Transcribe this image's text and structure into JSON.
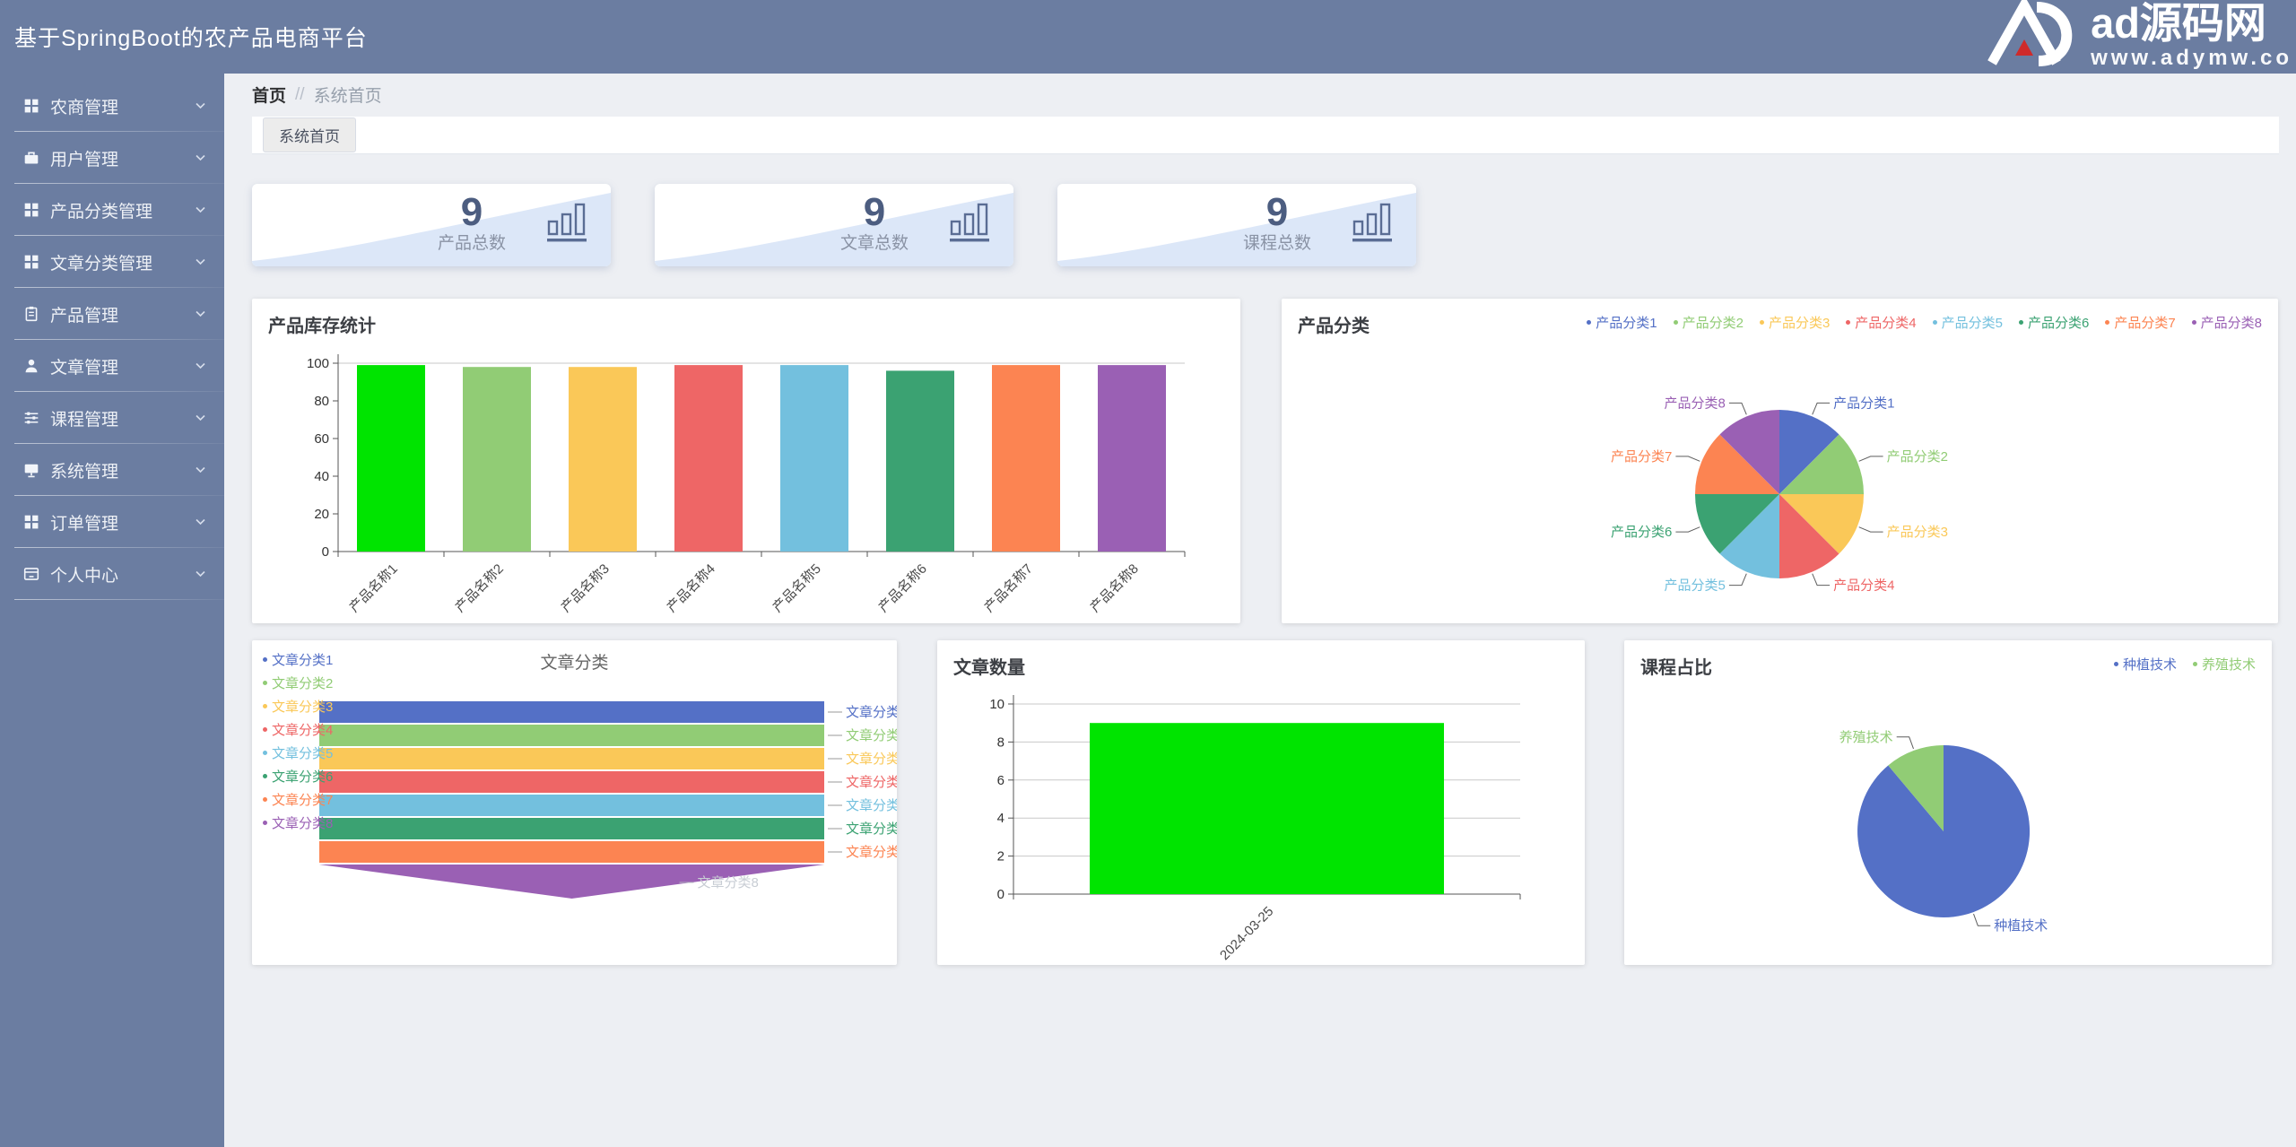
{
  "header": {
    "title": "基于SpringBoot的农产品电商平台",
    "watermark": {
      "logo_text": "ad源码网",
      "url": "www.adymw.co",
      "logo_icon": "ad-logo-icon"
    }
  },
  "sidebar": {
    "items": [
      {
        "icon": "grid-icon",
        "label": "农商管理"
      },
      {
        "icon": "briefcase-icon",
        "label": "用户管理"
      },
      {
        "icon": "grid-icon",
        "label": "产品分类管理"
      },
      {
        "icon": "grid-icon",
        "label": "文章分类管理"
      },
      {
        "icon": "clipboard-icon",
        "label": "产品管理"
      },
      {
        "icon": "user-icon",
        "label": "文章管理"
      },
      {
        "icon": "sliders-icon",
        "label": "课程管理"
      },
      {
        "icon": "monitor-icon",
        "label": "系统管理"
      },
      {
        "icon": "grid-icon",
        "label": "订单管理"
      },
      {
        "icon": "idcard-icon",
        "label": "个人中心"
      }
    ],
    "expand_icon": "chevron-down-icon"
  },
  "breadcrumb": {
    "home": "首页",
    "separator": "//",
    "current": "系统首页"
  },
  "tabs": [
    {
      "label": "系统首页",
      "active": true
    }
  ],
  "stats": [
    {
      "value": "9",
      "label": "产品总数",
      "icon": "bar-chart-icon"
    },
    {
      "value": "9",
      "label": "文章总数",
      "icon": "bar-chart-icon"
    },
    {
      "value": "9",
      "label": "课程总数",
      "icon": "bar-chart-icon"
    }
  ],
  "colors": {
    "header_bg": "#6b7da1",
    "page_bg": "#edeff3",
    "stat_number": "#4c5d80",
    "stat_icon": "#5a6d94",
    "stat_wave": "#dce7f8",
    "bright_green": "#00e400",
    "palette": [
      "#5470c6",
      "#91cc75",
      "#fac858",
      "#ee6666",
      "#73c0de",
      "#3ba272",
      "#fc8452",
      "#9a60b4"
    ]
  },
  "chart_data": [
    {
      "id": "product-stock",
      "type": "bar",
      "title": "产品库存统计",
      "categories": [
        "产品名称1",
        "产品名称2",
        "产品名称3",
        "产品名称4",
        "产品名称5",
        "产品名称6",
        "产品名称7",
        "产品名称8"
      ],
      "values": [
        99,
        98,
        98,
        99,
        99,
        96,
        99,
        99
      ],
      "ylim": [
        0,
        100
      ],
      "ytick_step": 20,
      "bar_colors": [
        "#00e400",
        "#91cc75",
        "#fac858",
        "#ee6666",
        "#73c0de",
        "#3ba272",
        "#fc8452",
        "#9a60b4"
      ],
      "grid": "top",
      "xlabel_rotate": 45
    },
    {
      "id": "product-category",
      "type": "pie",
      "title": "产品分类",
      "labels": [
        "产品分类1",
        "产品分类2",
        "产品分类3",
        "产品分类4",
        "产品分类5",
        "产品分类6",
        "产品分类7",
        "产品分类8"
      ],
      "values": [
        1,
        1,
        1,
        1,
        1,
        1,
        1,
        1
      ],
      "colors": [
        "#5470c6",
        "#91cc75",
        "#fac858",
        "#ee6666",
        "#73c0de",
        "#3ba272",
        "#fc8452",
        "#9a60b4"
      ],
      "legend_position": "top-right",
      "label_style": "callout"
    },
    {
      "id": "article-category",
      "type": "funnel",
      "title": "文章分类",
      "labels": [
        "文章分类1",
        "文章分类2",
        "文章分类3",
        "文章分类4",
        "文章分类5",
        "文章分类6",
        "文章分类7",
        "文章分类8"
      ],
      "values": [
        1,
        1,
        1,
        1,
        1,
        1,
        1,
        1
      ],
      "colors": [
        "#5470c6",
        "#91cc75",
        "#fac858",
        "#ee6666",
        "#73c0de",
        "#3ba272",
        "#fc8452",
        "#9a60b4"
      ],
      "legend_position": "left"
    },
    {
      "id": "article-count",
      "type": "bar",
      "title": "文章数量",
      "categories": [
        "2024-03-25"
      ],
      "values": [
        9
      ],
      "ylim": [
        0,
        10
      ],
      "ytick_step": 2,
      "bar_colors": [
        "#00e400"
      ],
      "grid": "all",
      "xlabel_rotate": 45
    },
    {
      "id": "course-ratio",
      "type": "pie",
      "title": "课程占比",
      "labels": [
        "种植技术",
        "养殖技术"
      ],
      "values": [
        8,
        1
      ],
      "colors": [
        "#5470c6",
        "#91cc75"
      ],
      "legend_position": "top-right",
      "label_style": "callout"
    }
  ]
}
